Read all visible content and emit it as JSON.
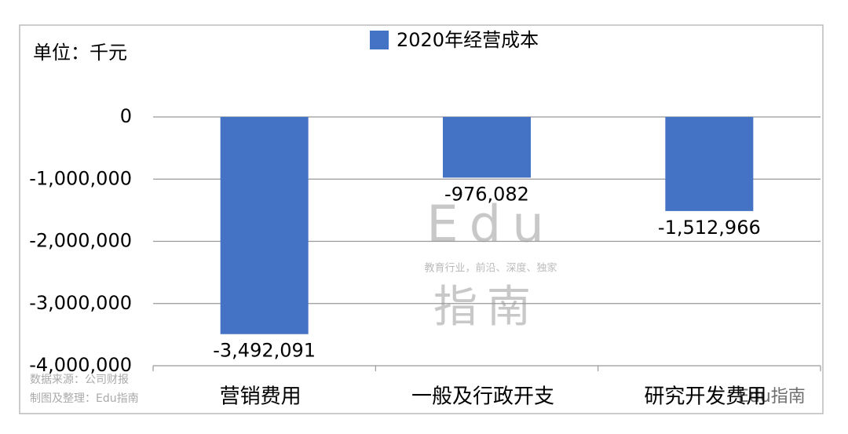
{
  "chart_data": {
    "type": "bar",
    "unit_label": "单位：千元",
    "categories": [
      "营销费用",
      "一般及行政开支",
      "研究开发费用"
    ],
    "series": [
      {
        "name": "2020年经营成本",
        "color": "#4472c4",
        "values": [
          -3492091,
          -976082,
          -1512966
        ],
        "value_labels": [
          "-3,492,091",
          "-976,082",
          "-1,512,966"
        ]
      }
    ],
    "ylim": [
      -4000000,
      0
    ],
    "yticks": [
      0,
      {
        "value": -1000000,
        "label": "-1,000,000"
      },
      {
        "value": -2000000,
        "label": "-2,000,000"
      },
      {
        "value": -3000000,
        "label": "-3,000,000"
      },
      {
        "value": -4000000,
        "label": "-4,000,000"
      }
    ],
    "grid": true,
    "annotations": [
      "数据来源：公司财报",
      "制图及整理：Edu指南",
      "Edu",
      "教育行业，前沿、深度、独家",
      "指南",
      "Edu指南"
    ]
  }
}
